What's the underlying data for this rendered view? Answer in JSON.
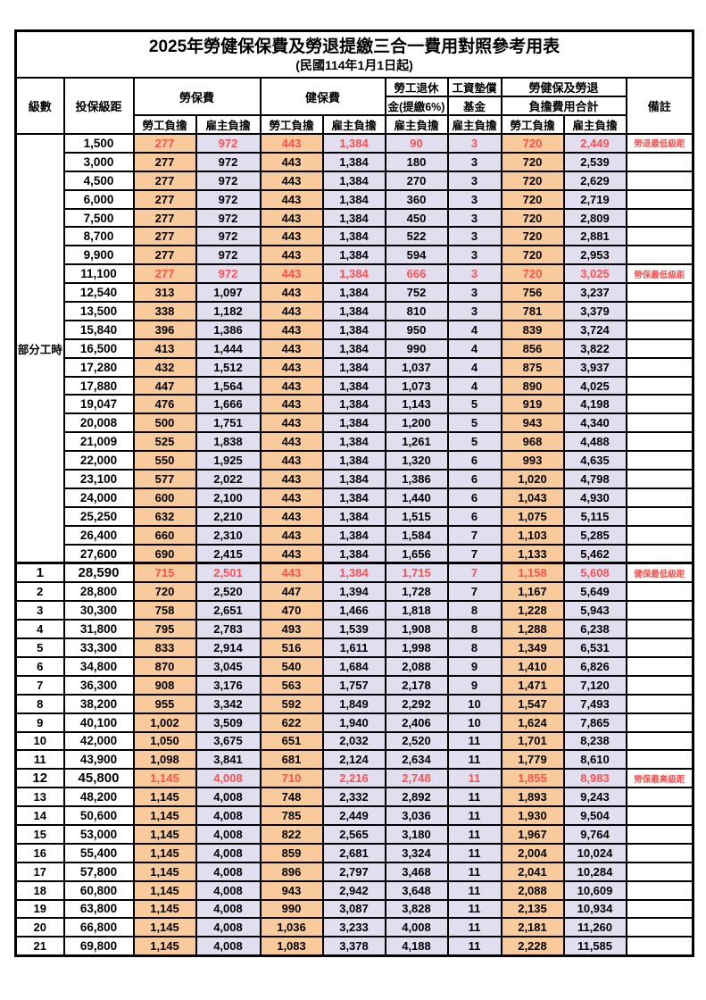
{
  "colors": {
    "employee_bg": "#F9CB9C",
    "employer_bg": "#E1DEF0",
    "highlight": "#FF5050",
    "border": "#000000"
  },
  "title": {
    "main": "2025年勞健保保費及勞退提繳三合一費用對照參考用表",
    "sub": "(民國114年1月1日起)"
  },
  "header": {
    "level": "級數",
    "bracket": "投保級距",
    "labor_insurance": "勞保費",
    "health_insurance": "健保費",
    "pension_line1": "勞工退休",
    "pension_line2": "金(提繳6%)",
    "wage_fund_line1": "工資墊償",
    "wage_fund_line2": "基金",
    "total_line1": "勞健保及勞退",
    "total_line2": "負擔費用合計",
    "remark": "備註",
    "employee": "勞工負擔",
    "employer": "雇主負擔"
  },
  "table": {
    "group_label": "部分工時",
    "group_row_count": 23,
    "rows": [
      {
        "level": "",
        "bracket": "1,500",
        "values": [
          "277",
          "972",
          "443",
          "1,384",
          "90",
          "3",
          "720",
          "2,449"
        ],
        "note": "勞退最低級距",
        "hl": true,
        "bold": false,
        "thick": false
      },
      {
        "level": "",
        "bracket": "3,000",
        "values": [
          "277",
          "972",
          "443",
          "1,384",
          "180",
          "3",
          "720",
          "2,539"
        ],
        "note": "",
        "hl": false,
        "bold": false,
        "thick": false
      },
      {
        "level": "",
        "bracket": "4,500",
        "values": [
          "277",
          "972",
          "443",
          "1,384",
          "270",
          "3",
          "720",
          "2,629"
        ],
        "note": "",
        "hl": false,
        "bold": false,
        "thick": false
      },
      {
        "level": "",
        "bracket": "6,000",
        "values": [
          "277",
          "972",
          "443",
          "1,384",
          "360",
          "3",
          "720",
          "2,719"
        ],
        "note": "",
        "hl": false,
        "bold": false,
        "thick": false
      },
      {
        "level": "",
        "bracket": "7,500",
        "values": [
          "277",
          "972",
          "443",
          "1,384",
          "450",
          "3",
          "720",
          "2,809"
        ],
        "note": "",
        "hl": false,
        "bold": false,
        "thick": false
      },
      {
        "level": "",
        "bracket": "8,700",
        "values": [
          "277",
          "972",
          "443",
          "1,384",
          "522",
          "3",
          "720",
          "2,881"
        ],
        "note": "",
        "hl": false,
        "bold": false,
        "thick": false
      },
      {
        "level": "",
        "bracket": "9,900",
        "values": [
          "277",
          "972",
          "443",
          "1,384",
          "594",
          "3",
          "720",
          "2,953"
        ],
        "note": "",
        "hl": false,
        "bold": false,
        "thick": false
      },
      {
        "level": "",
        "bracket": "11,100",
        "values": [
          "277",
          "972",
          "443",
          "1,384",
          "666",
          "3",
          "720",
          "3,025"
        ],
        "note": "勞保最低級距",
        "hl": true,
        "bold": false,
        "thick": false
      },
      {
        "level": "",
        "bracket": "12,540",
        "values": [
          "313",
          "1,097",
          "443",
          "1,384",
          "752",
          "3",
          "756",
          "3,237"
        ],
        "note": "",
        "hl": false,
        "bold": false,
        "thick": false
      },
      {
        "level": "",
        "bracket": "13,500",
        "values": [
          "338",
          "1,182",
          "443",
          "1,384",
          "810",
          "3",
          "781",
          "3,379"
        ],
        "note": "",
        "hl": false,
        "bold": false,
        "thick": false
      },
      {
        "level": "",
        "bracket": "15,840",
        "values": [
          "396",
          "1,386",
          "443",
          "1,384",
          "950",
          "4",
          "839",
          "3,724"
        ],
        "note": "",
        "hl": false,
        "bold": false,
        "thick": false
      },
      {
        "level": "",
        "bracket": "16,500",
        "values": [
          "413",
          "1,444",
          "443",
          "1,384",
          "990",
          "4",
          "856",
          "3,822"
        ],
        "note": "",
        "hl": false,
        "bold": false,
        "thick": false
      },
      {
        "level": "",
        "bracket": "17,280",
        "values": [
          "432",
          "1,512",
          "443",
          "1,384",
          "1,037",
          "4",
          "875",
          "3,937"
        ],
        "note": "",
        "hl": false,
        "bold": false,
        "thick": false
      },
      {
        "level": "",
        "bracket": "17,880",
        "values": [
          "447",
          "1,564",
          "443",
          "1,384",
          "1,073",
          "4",
          "890",
          "4,025"
        ],
        "note": "",
        "hl": false,
        "bold": false,
        "thick": false
      },
      {
        "level": "",
        "bracket": "19,047",
        "values": [
          "476",
          "1,666",
          "443",
          "1,384",
          "1,143",
          "5",
          "919",
          "4,198"
        ],
        "note": "",
        "hl": false,
        "bold": false,
        "thick": false
      },
      {
        "level": "",
        "bracket": "20,008",
        "values": [
          "500",
          "1,751",
          "443",
          "1,384",
          "1,200",
          "5",
          "943",
          "4,340"
        ],
        "note": "",
        "hl": false,
        "bold": false,
        "thick": false
      },
      {
        "level": "",
        "bracket": "21,009",
        "values": [
          "525",
          "1,838",
          "443",
          "1,384",
          "1,261",
          "5",
          "968",
          "4,488"
        ],
        "note": "",
        "hl": false,
        "bold": false,
        "thick": false
      },
      {
        "level": "",
        "bracket": "22,000",
        "values": [
          "550",
          "1,925",
          "443",
          "1,384",
          "1,320",
          "6",
          "993",
          "4,635"
        ],
        "note": "",
        "hl": false,
        "bold": false,
        "thick": false
      },
      {
        "level": "",
        "bracket": "23,100",
        "values": [
          "577",
          "2,022",
          "443",
          "1,384",
          "1,386",
          "6",
          "1,020",
          "4,798"
        ],
        "note": "",
        "hl": false,
        "bold": false,
        "thick": false
      },
      {
        "level": "",
        "bracket": "24,000",
        "values": [
          "600",
          "2,100",
          "443",
          "1,384",
          "1,440",
          "6",
          "1,043",
          "4,930"
        ],
        "note": "",
        "hl": false,
        "bold": false,
        "thick": false
      },
      {
        "level": "",
        "bracket": "25,250",
        "values": [
          "632",
          "2,210",
          "443",
          "1,384",
          "1,515",
          "6",
          "1,075",
          "5,115"
        ],
        "note": "",
        "hl": false,
        "bold": false,
        "thick": false
      },
      {
        "level": "",
        "bracket": "26,400",
        "values": [
          "660",
          "2,310",
          "443",
          "1,384",
          "1,584",
          "7",
          "1,103",
          "5,285"
        ],
        "note": "",
        "hl": false,
        "bold": false,
        "thick": false
      },
      {
        "level": "",
        "bracket": "27,600",
        "values": [
          "690",
          "2,415",
          "443",
          "1,384",
          "1,656",
          "7",
          "1,133",
          "5,462"
        ],
        "note": "",
        "hl": false,
        "bold": false,
        "thick": false
      },
      {
        "level": "1",
        "bracket": "28,590",
        "values": [
          "715",
          "2,501",
          "443",
          "1,384",
          "1,715",
          "7",
          "1,158",
          "5,608"
        ],
        "note": "健保最低級距",
        "hl": true,
        "bold": true,
        "thick": true
      },
      {
        "level": "2",
        "bracket": "28,800",
        "values": [
          "720",
          "2,520",
          "447",
          "1,394",
          "1,728",
          "7",
          "1,167",
          "5,649"
        ],
        "note": "",
        "hl": false,
        "bold": false,
        "thick": false
      },
      {
        "level": "3",
        "bracket": "30,300",
        "values": [
          "758",
          "2,651",
          "470",
          "1,466",
          "1,818",
          "8",
          "1,228",
          "5,943"
        ],
        "note": "",
        "hl": false,
        "bold": false,
        "thick": false
      },
      {
        "level": "4",
        "bracket": "31,800",
        "values": [
          "795",
          "2,783",
          "493",
          "1,539",
          "1,908",
          "8",
          "1,288",
          "6,238"
        ],
        "note": "",
        "hl": false,
        "bold": false,
        "thick": false
      },
      {
        "level": "5",
        "bracket": "33,300",
        "values": [
          "833",
          "2,914",
          "516",
          "1,611",
          "1,998",
          "8",
          "1,349",
          "6,531"
        ],
        "note": "",
        "hl": false,
        "bold": false,
        "thick": false
      },
      {
        "level": "6",
        "bracket": "34,800",
        "values": [
          "870",
          "3,045",
          "540",
          "1,684",
          "2,088",
          "9",
          "1,410",
          "6,826"
        ],
        "note": "",
        "hl": false,
        "bold": false,
        "thick": false
      },
      {
        "level": "7",
        "bracket": "36,300",
        "values": [
          "908",
          "3,176",
          "563",
          "1,757",
          "2,178",
          "9",
          "1,471",
          "7,120"
        ],
        "note": "",
        "hl": false,
        "bold": false,
        "thick": false
      },
      {
        "level": "8",
        "bracket": "38,200",
        "values": [
          "955",
          "3,342",
          "592",
          "1,849",
          "2,292",
          "10",
          "1,547",
          "7,493"
        ],
        "note": "",
        "hl": false,
        "bold": false,
        "thick": false
      },
      {
        "level": "9",
        "bracket": "40,100",
        "values": [
          "1,002",
          "3,509",
          "622",
          "1,940",
          "2,406",
          "10",
          "1,624",
          "7,865"
        ],
        "note": "",
        "hl": false,
        "bold": false,
        "thick": false
      },
      {
        "level": "10",
        "bracket": "42,000",
        "values": [
          "1,050",
          "3,675",
          "651",
          "2,032",
          "2,520",
          "11",
          "1,701",
          "8,238"
        ],
        "note": "",
        "hl": false,
        "bold": false,
        "thick": false
      },
      {
        "level": "11",
        "bracket": "43,900",
        "values": [
          "1,098",
          "3,841",
          "681",
          "2,124",
          "2,634",
          "11",
          "1,779",
          "8,610"
        ],
        "note": "",
        "hl": false,
        "bold": false,
        "thick": false
      },
      {
        "level": "12",
        "bracket": "45,800",
        "values": [
          "1,145",
          "4,008",
          "710",
          "2,216",
          "2,748",
          "11",
          "1,855",
          "8,983"
        ],
        "note": "勞保最高級距",
        "hl": true,
        "bold": true,
        "thick": false
      },
      {
        "level": "13",
        "bracket": "48,200",
        "values": [
          "1,145",
          "4,008",
          "748",
          "2,332",
          "2,892",
          "11",
          "1,893",
          "9,243"
        ],
        "note": "",
        "hl": false,
        "bold": false,
        "thick": false
      },
      {
        "level": "14",
        "bracket": "50,600",
        "values": [
          "1,145",
          "4,008",
          "785",
          "2,449",
          "3,036",
          "11",
          "1,930",
          "9,504"
        ],
        "note": "",
        "hl": false,
        "bold": false,
        "thick": false
      },
      {
        "level": "15",
        "bracket": "53,000",
        "values": [
          "1,145",
          "4,008",
          "822",
          "2,565",
          "3,180",
          "11",
          "1,967",
          "9,764"
        ],
        "note": "",
        "hl": false,
        "bold": false,
        "thick": false
      },
      {
        "level": "16",
        "bracket": "55,400",
        "values": [
          "1,145",
          "4,008",
          "859",
          "2,681",
          "3,324",
          "11",
          "2,004",
          "10,024"
        ],
        "note": "",
        "hl": false,
        "bold": false,
        "thick": false
      },
      {
        "level": "17",
        "bracket": "57,800",
        "values": [
          "1,145",
          "4,008",
          "896",
          "2,797",
          "3,468",
          "11",
          "2,041",
          "10,284"
        ],
        "note": "",
        "hl": false,
        "bold": false,
        "thick": false
      },
      {
        "level": "18",
        "bracket": "60,800",
        "values": [
          "1,145",
          "4,008",
          "943",
          "2,942",
          "3,648",
          "11",
          "2,088",
          "10,609"
        ],
        "note": "",
        "hl": false,
        "bold": false,
        "thick": false
      },
      {
        "level": "19",
        "bracket": "63,800",
        "values": [
          "1,145",
          "4,008",
          "990",
          "3,087",
          "3,828",
          "11",
          "2,135",
          "10,934"
        ],
        "note": "",
        "hl": false,
        "bold": false,
        "thick": false
      },
      {
        "level": "20",
        "bracket": "66,800",
        "values": [
          "1,145",
          "4,008",
          "1,036",
          "3,233",
          "4,008",
          "11",
          "2,181",
          "11,260"
        ],
        "note": "",
        "hl": false,
        "bold": false,
        "thick": false
      },
      {
        "level": "21",
        "bracket": "69,800",
        "values": [
          "1,145",
          "4,008",
          "1,083",
          "3,378",
          "4,188",
          "11",
          "2,228",
          "11,585"
        ],
        "note": "",
        "hl": false,
        "bold": false,
        "thick": false
      }
    ]
  }
}
